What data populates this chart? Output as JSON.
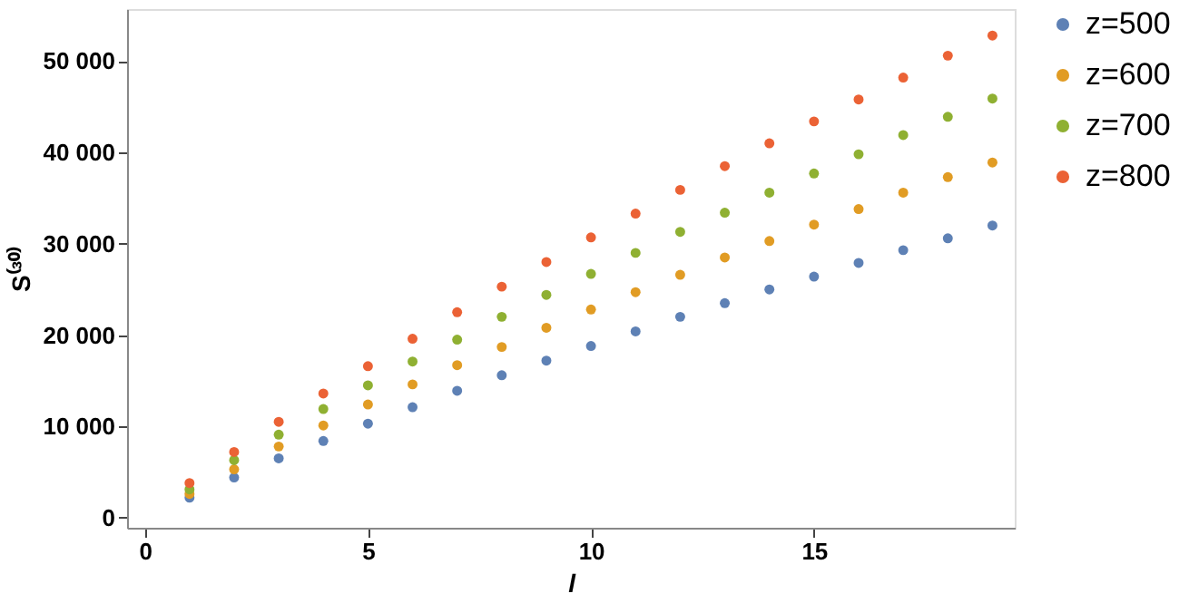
{
  "chart_data": {
    "type": "scatter",
    "xlabel": "l",
    "ylabel": "S⁽³⁰⁾",
    "x": [
      1,
      2,
      3,
      4,
      5,
      6,
      7,
      8,
      9,
      10,
      11,
      12,
      13,
      14,
      15,
      16,
      17,
      18,
      19
    ],
    "series": [
      {
        "name": "z=500",
        "color": "#5e81b5",
        "values": [
          2200,
          4400,
          6500,
          8400,
          10300,
          12100,
          13900,
          15600,
          17200,
          18800,
          20400,
          22000,
          23500,
          25000,
          26400,
          27900,
          29300,
          30600,
          32000
        ]
      },
      {
        "name": "z=600",
        "color": "#e19c24",
        "values": [
          2600,
          5300,
          7800,
          10100,
          12400,
          14600,
          16700,
          18700,
          20800,
          22800,
          24700,
          26600,
          28500,
          30300,
          32100,
          33800,
          35600,
          37300,
          38900
        ]
      },
      {
        "name": "z=700",
        "color": "#8fb032",
        "values": [
          3100,
          6300,
          9100,
          11900,
          14500,
          17100,
          19500,
          22000,
          24400,
          26700,
          29000,
          31300,
          33400,
          35600,
          37700,
          39800,
          41900,
          43900,
          45900
        ]
      },
      {
        "name": "z=800",
        "color": "#eb6235",
        "values": [
          3800,
          7200,
          10500,
          13600,
          16600,
          19600,
          22500,
          25300,
          28000,
          30700,
          33300,
          35900,
          38500,
          41000,
          43400,
          45800,
          48200,
          50600,
          52800
        ]
      }
    ],
    "xlim": [
      -0.4,
      19.5
    ],
    "ylim": [
      -1100,
      55700
    ],
    "xticks": [
      0,
      5,
      10,
      15
    ],
    "yticks": [
      0,
      {
        "value": 10000,
        "label": "10 000"
      },
      {
        "value": 20000,
        "label": "20 000"
      },
      {
        "value": 30000,
        "label": "30 000"
      },
      {
        "value": 40000,
        "label": "40 000"
      },
      {
        "value": 50000,
        "label": "50 000"
      }
    ],
    "grid": false,
    "legend": "right",
    "marker": "circle"
  }
}
